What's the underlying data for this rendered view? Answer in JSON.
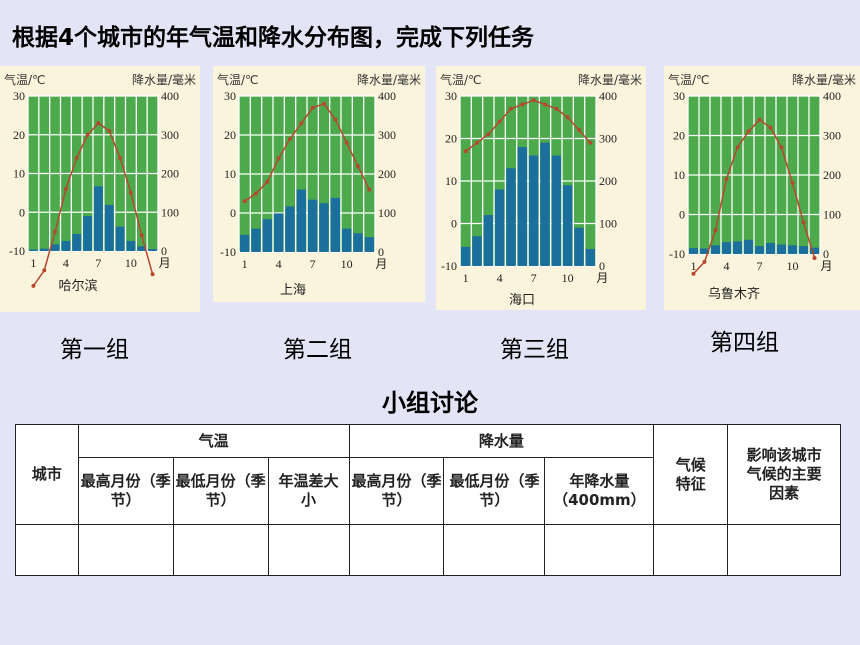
{
  "title": "根据4个城市的年气温和降水分布图，完成下列任务",
  "groups": [
    "第一组",
    "第二组",
    "第三组",
    "第四组"
  ],
  "discussion_title": "小组讨论",
  "table": {
    "city_header": "城市",
    "temp_header": "气温",
    "precip_header": "降水量",
    "climate_header": "气候特征",
    "factors_header": "影响该城市气候的主要因素",
    "sub": [
      "最高月份（季节）",
      "最低月份（季节）",
      "年温差大小",
      "最高月份（季节）",
      "最低月份（季节）",
      "年降水量（400mm）"
    ]
  },
  "colors": {
    "plot_bg": "#4caa4c",
    "grid": "#ffffff",
    "bar": "#1b6f9c",
    "line": "#b5482f",
    "panel": "#fbf4dc"
  },
  "chart_data": [
    {
      "type": "bar+line",
      "city": "哈尔滨",
      "temp_label": "气温/℃",
      "precip_label": "降水量/毫米",
      "x_label": "月",
      "x_ticks": [
        1,
        4,
        7,
        10
      ],
      "temp_ticks": [
        30,
        20,
        10,
        0,
        -10
      ],
      "precip_ticks": [
        400,
        300,
        200,
        100,
        0
      ],
      "temp_range": [
        -10,
        30
      ],
      "precip_range": [
        0,
        400
      ],
      "months": [
        1,
        2,
        3,
        4,
        5,
        6,
        7,
        8,
        9,
        10,
        11,
        12
      ],
      "temperature": [
        -19,
        -15,
        -5,
        6,
        14,
        20,
        23,
        21,
        14,
        5,
        -6,
        -16
      ],
      "precipitation": [
        4,
        6,
        17,
        26,
        44,
        90,
        167,
        119,
        63,
        26,
        12,
        5
      ]
    },
    {
      "type": "bar+line",
      "city": "上海",
      "temp_label": "气温/℃",
      "precip_label": "降水量/毫米",
      "x_label": "月",
      "x_ticks": [
        1,
        4,
        7,
        10
      ],
      "temp_ticks": [
        30,
        20,
        10,
        0,
        -10
      ],
      "precip_ticks": [
        400,
        300,
        200,
        100,
        0
      ],
      "temp_range": [
        -10,
        30
      ],
      "precip_range": [
        0,
        400
      ],
      "months": [
        1,
        2,
        3,
        4,
        5,
        6,
        7,
        8,
        9,
        10,
        11,
        12
      ],
      "temperature": [
        3,
        5,
        8,
        14,
        19,
        23,
        27,
        28,
        24,
        18,
        12,
        6
      ],
      "precipitation": [
        44,
        60,
        84,
        99,
        117,
        160,
        134,
        125,
        139,
        60,
        48,
        38
      ]
    },
    {
      "type": "bar+line",
      "city": "海口",
      "temp_label": "气温/℃",
      "precip_label": "降水量/毫米",
      "x_label": "月",
      "x_ticks": [
        1,
        4,
        7,
        10
      ],
      "temp_ticks": [
        30,
        20,
        10,
        0,
        -10
      ],
      "precip_ticks": [
        400,
        300,
        200,
        100,
        0
      ],
      "temp_range": [
        -10,
        30
      ],
      "precip_range": [
        0,
        400
      ],
      "months": [
        1,
        2,
        3,
        4,
        5,
        6,
        7,
        8,
        9,
        10,
        11,
        12
      ],
      "temperature": [
        17,
        19,
        21,
        24,
        27,
        28,
        29,
        28,
        27,
        25,
        22,
        19
      ],
      "precipitation": [
        45,
        70,
        120,
        180,
        230,
        280,
        260,
        290,
        260,
        190,
        90,
        40
      ]
    },
    {
      "type": "bar+line",
      "city": "乌鲁木齐",
      "temp_label": "气温/℃",
      "precip_label": "降水量/毫米",
      "x_label": "月",
      "x_ticks": [
        1,
        4,
        7,
        10
      ],
      "temp_ticks": [
        30,
        20,
        10,
        0,
        -10
      ],
      "precip_ticks": [
        400,
        300,
        200,
        100,
        0
      ],
      "temp_range": [
        -10,
        30
      ],
      "precip_range": [
        0,
        400
      ],
      "months": [
        1,
        2,
        3,
        4,
        5,
        6,
        7,
        8,
        9,
        10,
        11,
        12
      ],
      "temperature": [
        -15,
        -12,
        -4,
        9,
        17,
        21,
        24,
        22,
        17,
        8,
        -2,
        -11
      ],
      "precipitation": [
        15,
        14,
        22,
        30,
        32,
        36,
        20,
        28,
        24,
        22,
        20,
        16
      ]
    }
  ]
}
